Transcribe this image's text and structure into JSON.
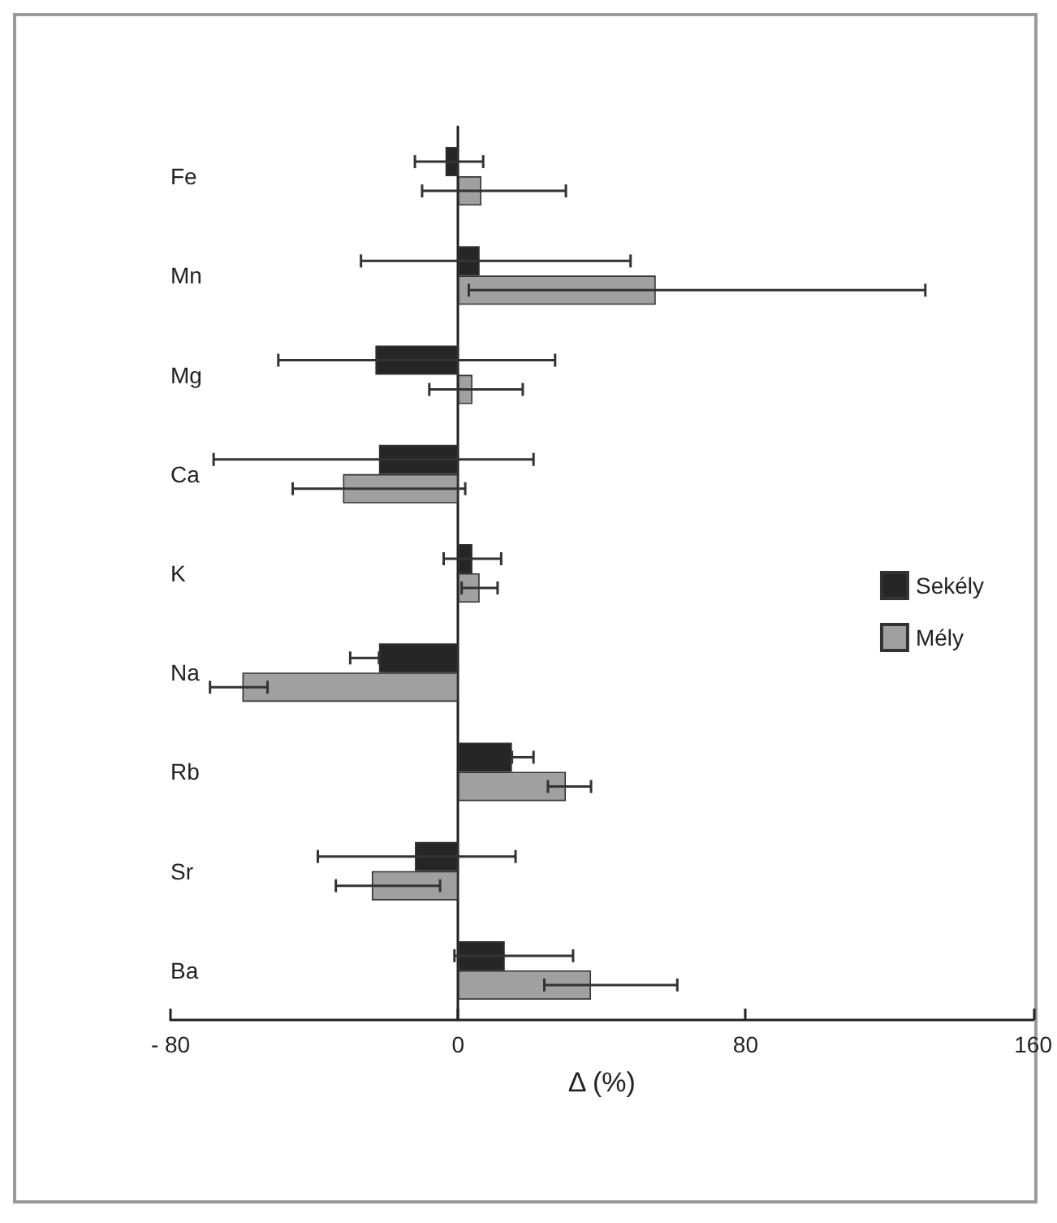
{
  "chart_data": {
    "type": "bar",
    "orientation": "horizontal",
    "xlabel": "Δ (%)",
    "categories": [
      "Fe",
      "Mn",
      "Mg",
      "Ca",
      "K",
      "Na",
      "Rb",
      "Sr",
      "Ba"
    ],
    "series": [
      {
        "name": "Sekély",
        "color": "#262626",
        "values": [
          -3.5,
          6,
          -23,
          -22,
          4,
          -22,
          15,
          -12,
          13
        ],
        "errors": [
          [
            -12,
            7
          ],
          [
            -27,
            48
          ],
          [
            -50,
            27
          ],
          [
            -68,
            21
          ],
          [
            -4,
            12
          ],
          [
            -30,
            -22
          ],
          [
            15,
            21
          ],
          [
            -39,
            16
          ],
          [
            -1,
            32
          ]
        ]
      },
      {
        "name": "Mély",
        "color": "#a0a0a0",
        "values": [
          6.5,
          55,
          4,
          -32,
          6,
          -60,
          30,
          -24,
          37
        ],
        "errors": [
          [
            -10,
            30
          ],
          [
            3,
            130
          ],
          [
            -8,
            18
          ],
          [
            -46,
            2
          ],
          [
            1,
            11
          ],
          [
            -69,
            -53
          ],
          [
            25,
            37
          ],
          [
            -34,
            -5
          ],
          [
            24,
            61
          ]
        ]
      }
    ],
    "xlim": [
      -80,
      160
    ],
    "xticks": [
      {
        "value": -80,
        "label": "- 80"
      },
      0,
      80,
      160
    ],
    "legend": "right"
  }
}
